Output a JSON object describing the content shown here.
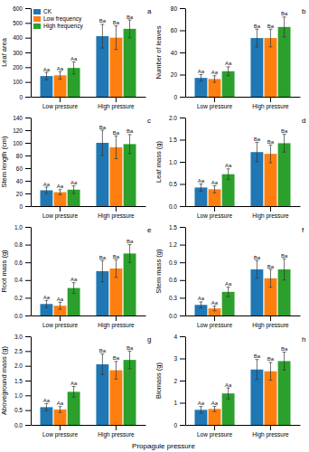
{
  "xlabel": "Propagule pressure",
  "chart_data": [
    {
      "type": "bar",
      "title": "a",
      "ylabel": "Leaf area",
      "legend": "upper left",
      "categories": [
        "Low pressure",
        "High pressure"
      ],
      "ylim": [
        0,
        600
      ],
      "yticks": [
        0,
        100,
        200,
        300,
        400,
        500,
        600
      ],
      "series": [
        {
          "name": "CK",
          "values": [
            140,
            410
          ],
          "errors": [
            25,
            80
          ],
          "letters": [
            "Aa",
            "Ba"
          ]
        },
        {
          "name": "Low frequency",
          "values": [
            145,
            400
          ],
          "errors": [
            25,
            80
          ],
          "letters": [
            "Aa",
            "Ba"
          ]
        },
        {
          "name": "High frequency",
          "values": [
            195,
            460
          ],
          "errors": [
            40,
            60
          ],
          "letters": [
            "Aa",
            "Ba"
          ]
        }
      ]
    },
    {
      "type": "bar",
      "title": "b",
      "ylabel": "Number of leaves",
      "categories": [
        "Low pressure",
        "High pressure"
      ],
      "ylim": [
        0,
        80
      ],
      "yticks": [
        0,
        20,
        40,
        60,
        80
      ],
      "series": [
        {
          "values": [
            17,
            53
          ],
          "errors": [
            3,
            8
          ],
          "letters": [
            "Aa",
            "Ba"
          ]
        },
        {
          "values": [
            16,
            53
          ],
          "errors": [
            3,
            8
          ],
          "letters": [
            "Aa",
            "Ba"
          ]
        },
        {
          "values": [
            23,
            63
          ],
          "errors": [
            4,
            9
          ],
          "letters": [
            "Aa",
            "Ba"
          ]
        }
      ]
    },
    {
      "type": "bar",
      "title": "c",
      "ylabel": "Stem length (cm)",
      "categories": [
        "Low pressure",
        "High pressure"
      ],
      "ylim": [
        0,
        140
      ],
      "yticks": [
        0,
        20,
        40,
        60,
        80,
        100,
        120,
        140
      ],
      "series": [
        {
          "values": [
            25,
            100
          ],
          "errors": [
            5,
            20
          ],
          "letters": [
            "Aa",
            "Ba"
          ]
        },
        {
          "values": [
            22,
            93
          ],
          "errors": [
            4,
            18
          ],
          "letters": [
            "Aa",
            "Ba"
          ]
        },
        {
          "values": [
            26,
            98
          ],
          "errors": [
            6,
            15
          ],
          "letters": [
            "Aa",
            "Ba"
          ]
        }
      ]
    },
    {
      "type": "bar",
      "title": "d",
      "ylabel": "Leaf mass (g)",
      "categories": [
        "Low pressure",
        "High pressure"
      ],
      "ylim": [
        0.0,
        2.0
      ],
      "yticks": [
        {
          "value": 0.0,
          "label": "0.0"
        },
        0.5,
        {
          "value": 1.0,
          "label": "1.0"
        },
        1.5,
        {
          "value": 2.0,
          "label": "2.0"
        }
      ],
      "series": [
        {
          "values": [
            0.42,
            1.22
          ],
          "errors": [
            0.08,
            0.22
          ],
          "letters": [
            "Aa",
            "Ba"
          ]
        },
        {
          "values": [
            0.38,
            1.18
          ],
          "errors": [
            0.08,
            0.2
          ],
          "letters": [
            "Aa",
            "Ba"
          ]
        },
        {
          "values": [
            0.72,
            1.42
          ],
          "errors": [
            0.12,
            0.2
          ],
          "letters": [
            "Aa",
            "Ba"
          ]
        }
      ]
    },
    {
      "type": "bar",
      "title": "e",
      "ylabel": "Root mass (g)",
      "categories": [
        "Low pressure",
        "High pressure"
      ],
      "ylim": [
        0.0,
        1.0
      ],
      "yticks": [
        {
          "value": 0.0,
          "label": "0.0"
        },
        0.2,
        0.4,
        0.6,
        0.8,
        {
          "value": 1.0,
          "label": "1.0"
        }
      ],
      "series": [
        {
          "values": [
            0.13,
            0.5
          ],
          "errors": [
            0.04,
            0.12
          ],
          "letters": [
            "Aa",
            "Ba"
          ]
        },
        {
          "values": [
            0.11,
            0.53
          ],
          "errors": [
            0.04,
            0.1
          ],
          "letters": [
            "Aa",
            "Ba"
          ]
        },
        {
          "values": [
            0.31,
            0.7
          ],
          "errors": [
            0.06,
            0.1
          ],
          "letters": [
            "Aa",
            "Ba"
          ]
        }
      ]
    },
    {
      "type": "bar",
      "title": "f",
      "ylabel": "Stem mass (g)",
      "categories": [
        "Low pressure",
        "High pressure"
      ],
      "ylim": [
        0.0,
        1.5
      ],
      "yticks": [
        {
          "value": 0.0,
          "label": "0.0"
        },
        0.3,
        0.6,
        0.9,
        1.2,
        1.5
      ],
      "series": [
        {
          "values": [
            0.18,
            0.78
          ],
          "errors": [
            0.05,
            0.15
          ],
          "letters": [
            "Aa",
            "Ba"
          ]
        },
        {
          "values": [
            0.12,
            0.63
          ],
          "errors": [
            0.04,
            0.15
          ],
          "letters": [
            "Aa",
            "Ba"
          ]
        },
        {
          "values": [
            0.4,
            0.78
          ],
          "errors": [
            0.08,
            0.18
          ],
          "letters": [
            "Aa",
            "Ba"
          ]
        }
      ]
    },
    {
      "type": "bar",
      "title": "g",
      "ylabel": "Aboveground mass (g)",
      "categories": [
        "Low pressure",
        "High pressure"
      ],
      "ylim": [
        0.0,
        3.0
      ],
      "yticks": [
        {
          "value": 0.0,
          "label": "0.0"
        },
        0.5,
        {
          "value": 1.0,
          "label": "1.0"
        },
        1.5,
        {
          "value": 2.0,
          "label": "2.0"
        },
        2.5,
        {
          "value": 3.0,
          "label": "3.0"
        }
      ],
      "series": [
        {
          "values": [
            0.6,
            2.05
          ],
          "errors": [
            0.12,
            0.35
          ],
          "letters": [
            "Aa",
            "Ba"
          ]
        },
        {
          "values": [
            0.52,
            1.85
          ],
          "errors": [
            0.1,
            0.3
          ],
          "letters": [
            "Aa",
            "Ba"
          ]
        },
        {
          "values": [
            1.12,
            2.2
          ],
          "errors": [
            0.18,
            0.3
          ],
          "letters": [
            "Aa",
            "Ba"
          ]
        }
      ]
    },
    {
      "type": "bar",
      "title": "h",
      "ylabel": "Biomass (g)",
      "categories": [
        "Low pressure",
        "High pressure"
      ],
      "ylim": [
        0,
        4
      ],
      "yticks": [
        0,
        1,
        2,
        3,
        4
      ],
      "series": [
        {
          "values": [
            0.68,
            2.5
          ],
          "errors": [
            0.15,
            0.45
          ],
          "letters": [
            "Aa",
            "Ba"
          ]
        },
        {
          "values": [
            0.72,
            2.42
          ],
          "errors": [
            0.12,
            0.4
          ],
          "letters": [
            "Aa",
            "Ba"
          ]
        },
        {
          "values": [
            1.42,
            2.88
          ],
          "errors": [
            0.25,
            0.4
          ],
          "letters": [
            "Aa",
            "Ba"
          ]
        }
      ]
    }
  ]
}
